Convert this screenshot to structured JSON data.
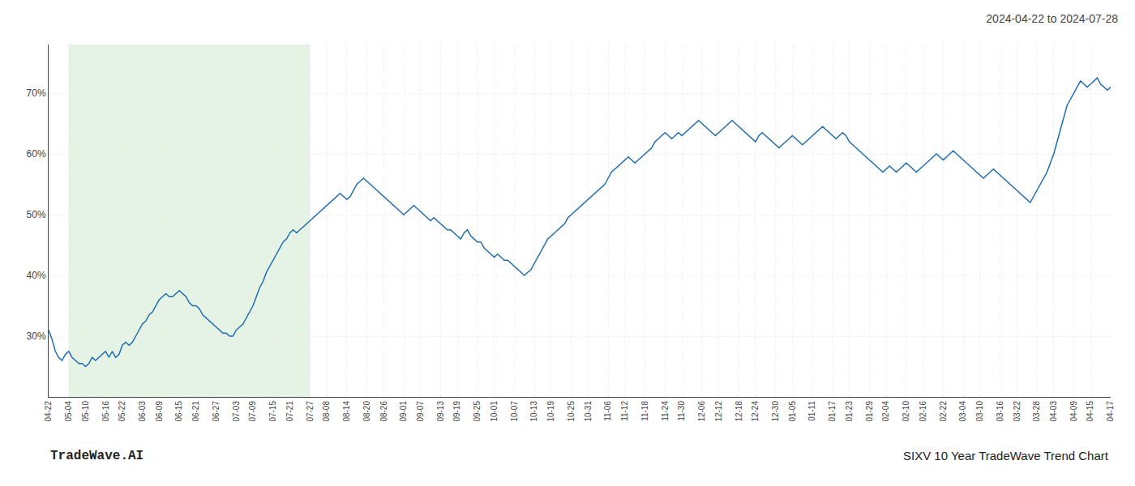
{
  "chart_data": {
    "type": "line",
    "title": "2024-04-22 to 2024-07-28",
    "annotations": [
      "TradeWave.AI",
      "SIXV 10 Year TradeWave Trend Chart"
    ],
    "color": "#1f6cb0",
    "grid": true,
    "ylim": [
      20,
      78
    ],
    "yticks": [
      {
        "value": 30,
        "label": "30%"
      },
      {
        "value": 40,
        "label": "40%"
      },
      {
        "value": 50,
        "label": "50%"
      },
      {
        "value": 60,
        "label": "60%"
      },
      {
        "value": 70,
        "label": "70%"
      }
    ],
    "highlight": {
      "start": "05-04",
      "end": "07-27",
      "color": "#cce8cc"
    },
    "categories": [
      "04-22",
      null,
      null,
      null,
      null,
      null,
      "05-04",
      null,
      null,
      null,
      null,
      "05-10",
      null,
      null,
      null,
      null,
      null,
      "05-16",
      null,
      null,
      null,
      null,
      "05-22",
      null,
      null,
      null,
      null,
      null,
      "06-03",
      null,
      null,
      null,
      null,
      "06-09",
      null,
      null,
      null,
      null,
      null,
      "06-15",
      null,
      null,
      null,
      null,
      "06-21",
      null,
      null,
      null,
      null,
      null,
      "06-27",
      null,
      null,
      null,
      null,
      null,
      "07-03",
      null,
      null,
      null,
      null,
      "07-09",
      null,
      null,
      null,
      null,
      null,
      "07-15",
      null,
      null,
      null,
      null,
      "07-21",
      null,
      null,
      null,
      null,
      null,
      "07-27",
      null,
      null,
      null,
      null,
      "08-08",
      null,
      null,
      null,
      null,
      null,
      "08-14",
      null,
      null,
      null,
      null,
      null,
      "08-20",
      null,
      null,
      null,
      null,
      "08-26",
      null,
      null,
      null,
      null,
      null,
      "09-01",
      null,
      null,
      null,
      null,
      "09-07",
      null,
      null,
      null,
      null,
      null,
      "09-13",
      null,
      null,
      null,
      null,
      "09-19",
      null,
      null,
      null,
      null,
      null,
      "09-25",
      null,
      null,
      null,
      null,
      "10-01",
      null,
      null,
      null,
      null,
      null,
      "10-07",
      null,
      null,
      null,
      null,
      null,
      "10-13",
      null,
      null,
      null,
      null,
      "10-19",
      null,
      null,
      null,
      null,
      null,
      "10-25",
      null,
      null,
      null,
      null,
      "10-31",
      null,
      null,
      null,
      null,
      null,
      "11-06",
      null,
      null,
      null,
      null,
      "11-12",
      null,
      null,
      null,
      null,
      null,
      "11-18",
      null,
      null,
      null,
      null,
      null,
      "11-24",
      null,
      null,
      null,
      null,
      "11-30",
      null,
      null,
      null,
      null,
      null,
      "12-06",
      null,
      null,
      null,
      null,
      "12-12",
      null,
      null,
      null,
      null,
      null,
      "12-18",
      null,
      null,
      null,
      null,
      "12-24",
      null,
      null,
      null,
      null,
      null,
      "12-30",
      null,
      null,
      null,
      null,
      "01-05",
      null,
      null,
      null,
      null,
      null,
      "01-11",
      null,
      null,
      null,
      null,
      null,
      "01-17",
      null,
      null,
      null,
      null,
      "01-23",
      null,
      null,
      null,
      null,
      null,
      "01-29",
      null,
      null,
      null,
      null,
      "02-04",
      null,
      null,
      null,
      null,
      null,
      "02-10",
      null,
      null,
      null,
      null,
      "02-16",
      null,
      null,
      null,
      null,
      null,
      "02-22",
      null,
      null,
      null,
      null,
      null,
      "03-04",
      null,
      null,
      null,
      null,
      "03-10",
      null,
      null,
      null,
      null,
      null,
      "03-16",
      null,
      null,
      null,
      null,
      "03-22",
      null,
      null,
      null,
      null,
      null,
      "03-28",
      null,
      null,
      null,
      null,
      "04-03",
      null,
      null,
      null,
      null,
      null,
      "04-09",
      null,
      null,
      null,
      null,
      "04-15",
      null,
      null,
      null,
      null,
      null,
      "04-17"
    ],
    "values": [
      31.0,
      29.5,
      27.5,
      26.5,
      26.0,
      27.0,
      27.5,
      26.5,
      26.0,
      25.5,
      25.5,
      25.0,
      25.5,
      26.5,
      26.0,
      26.5,
      27.0,
      27.5,
      26.5,
      27.5,
      26.5,
      27.0,
      28.5,
      29.0,
      28.5,
      29.0,
      30.0,
      31.0,
      32.0,
      32.5,
      33.5,
      34.0,
      35.0,
      36.0,
      36.5,
      37.0,
      36.5,
      36.5,
      37.0,
      37.5,
      37.0,
      36.5,
      35.5,
      35.0,
      35.0,
      34.5,
      33.5,
      33.0,
      32.5,
      32.0,
      31.5,
      31.0,
      30.5,
      30.5,
      30.0,
      30.0,
      31.0,
      31.5,
      32.0,
      33.0,
      34.0,
      35.0,
      36.5,
      38.0,
      39.0,
      40.5,
      41.5,
      42.5,
      43.5,
      44.5,
      45.5,
      46.0,
      47.0,
      47.5,
      47.0,
      47.5,
      48.0,
      48.5,
      49.0,
      49.5,
      50.0,
      50.5,
      51.0,
      51.5,
      52.0,
      52.5,
      53.0,
      53.5,
      53.0,
      52.5,
      53.0,
      54.0,
      55.0,
      55.5,
      56.0,
      55.5,
      55.0,
      54.5,
      54.0,
      53.5,
      53.0,
      52.5,
      52.0,
      51.5,
      51.0,
      50.5,
      50.0,
      50.5,
      51.0,
      51.5,
      51.0,
      50.5,
      50.0,
      49.5,
      49.0,
      49.5,
      49.0,
      48.5,
      48.0,
      47.5,
      47.5,
      47.0,
      46.5,
      46.0,
      47.0,
      47.5,
      46.5,
      46.0,
      45.5,
      45.5,
      44.5,
      44.0,
      43.5,
      43.0,
      43.5,
      43.0,
      42.5,
      42.5,
      42.0,
      41.5,
      41.0,
      40.5,
      40.0,
      40.5,
      41.0,
      42.0,
      43.0,
      44.0,
      45.0,
      46.0,
      46.5,
      47.0,
      47.5,
      48.0,
      48.5,
      49.5,
      50.0,
      50.5,
      51.0,
      51.5,
      52.0,
      52.5,
      53.0,
      53.5,
      54.0,
      54.5,
      55.0,
      56.0,
      57.0,
      57.5,
      58.0,
      58.5,
      59.0,
      59.5,
      59.0,
      58.5,
      59.0,
      59.5,
      60.0,
      60.5,
      61.0,
      62.0,
      62.5,
      63.0,
      63.5,
      63.0,
      62.5,
      63.0,
      63.5,
      63.0,
      63.5,
      64.0,
      64.5,
      65.0,
      65.5,
      65.0,
      64.5,
      64.0,
      63.5,
      63.0,
      63.5,
      64.0,
      64.5,
      65.0,
      65.5,
      65.0,
      64.5,
      64.0,
      63.5,
      63.0,
      62.5,
      62.0,
      63.0,
      63.5,
      63.0,
      62.5,
      62.0,
      61.5,
      61.0,
      61.5,
      62.0,
      62.5,
      63.0,
      62.5,
      62.0,
      61.5,
      62.0,
      62.5,
      63.0,
      63.5,
      64.0,
      64.5,
      64.0,
      63.5,
      63.0,
      62.5,
      63.0,
      63.5,
      63.0,
      62.0,
      61.5,
      61.0,
      60.5,
      60.0,
      59.5,
      59.0,
      58.5,
      58.0,
      57.5,
      57.0,
      57.5,
      58.0,
      57.5,
      57.0,
      57.5,
      58.0,
      58.5,
      58.0,
      57.5,
      57.0,
      57.5,
      58.0,
      58.5,
      59.0,
      59.5,
      60.0,
      59.5,
      59.0,
      59.5,
      60.0,
      60.5,
      60.0,
      59.5,
      59.0,
      58.5,
      58.0,
      57.5,
      57.0,
      56.5,
      56.0,
      56.5,
      57.0,
      57.5,
      57.0,
      56.5,
      56.0,
      55.5,
      55.0,
      54.5,
      54.0,
      53.5,
      53.0,
      52.5,
      52.0,
      53.0,
      54.0,
      55.0,
      56.0,
      57.0,
      58.5,
      60.0,
      62.0,
      64.0,
      66.0,
      68.0,
      69.0,
      70.0,
      71.0,
      72.0,
      71.5,
      71.0,
      71.5,
      72.0,
      72.5,
      71.5,
      71.0,
      70.5,
      71.0
    ]
  }
}
